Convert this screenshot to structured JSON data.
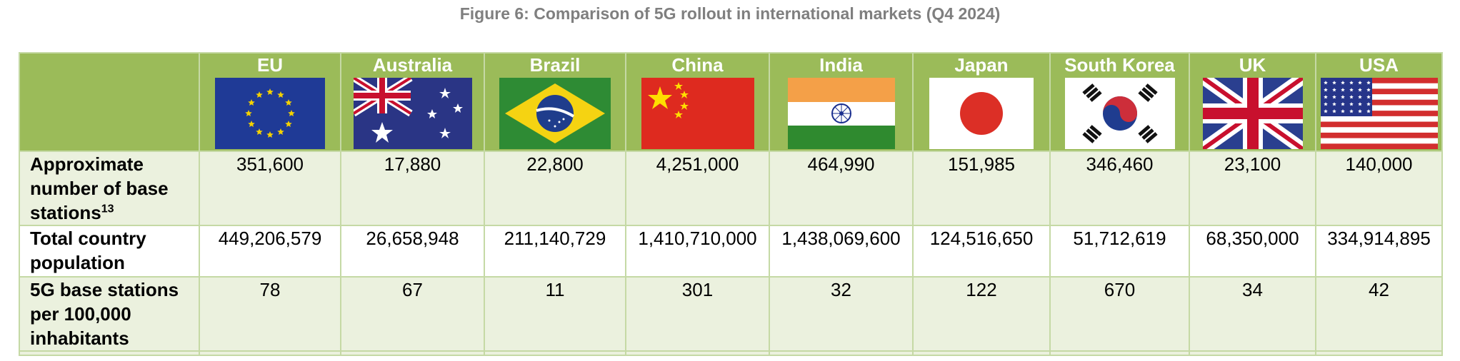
{
  "caption": "Figure 6: Comparison of 5G rollout in international markets (Q4 2024)",
  "columns": [
    {
      "name": "EU",
      "flag": "eu-flag"
    },
    {
      "name": "Australia",
      "flag": "australia-flag"
    },
    {
      "name": "Brazil",
      "flag": "brazil-flag"
    },
    {
      "name": "China",
      "flag": "china-flag"
    },
    {
      "name": "India",
      "flag": "india-flag"
    },
    {
      "name": "Japan",
      "flag": "japan-flag"
    },
    {
      "name": "South Korea",
      "flag": "south-korea-flag"
    },
    {
      "name": "UK",
      "flag": "uk-flag"
    },
    {
      "name": "USA",
      "flag": "usa-flag"
    }
  ],
  "rows": [
    {
      "label": "Approximate number of base stations",
      "footnote": "13",
      "values": [
        "351,600",
        "17,880",
        "22,800",
        "4,251,000",
        "464,990",
        "151,985",
        "346,460",
        "23,100",
        "140,000"
      ]
    },
    {
      "label": "Total country population",
      "values": [
        "449,206,579",
        "26,658,948",
        "211,140,729",
        "1,410,710,000",
        "1,438,069,600",
        "124,516,650",
        "51,712,619",
        "68,350,000",
        "334,914,895"
      ]
    },
    {
      "label": "5G base stations per 100,000 inhabitants",
      "values": [
        "78",
        "67",
        "11",
        "301",
        "32",
        "122",
        "670",
        "34",
        "42"
      ]
    }
  ],
  "colors": {
    "header": "#9bbb59",
    "row_shade": "#ebf1de",
    "border": "#c5d9a5",
    "caption": "#7f7f7f"
  }
}
